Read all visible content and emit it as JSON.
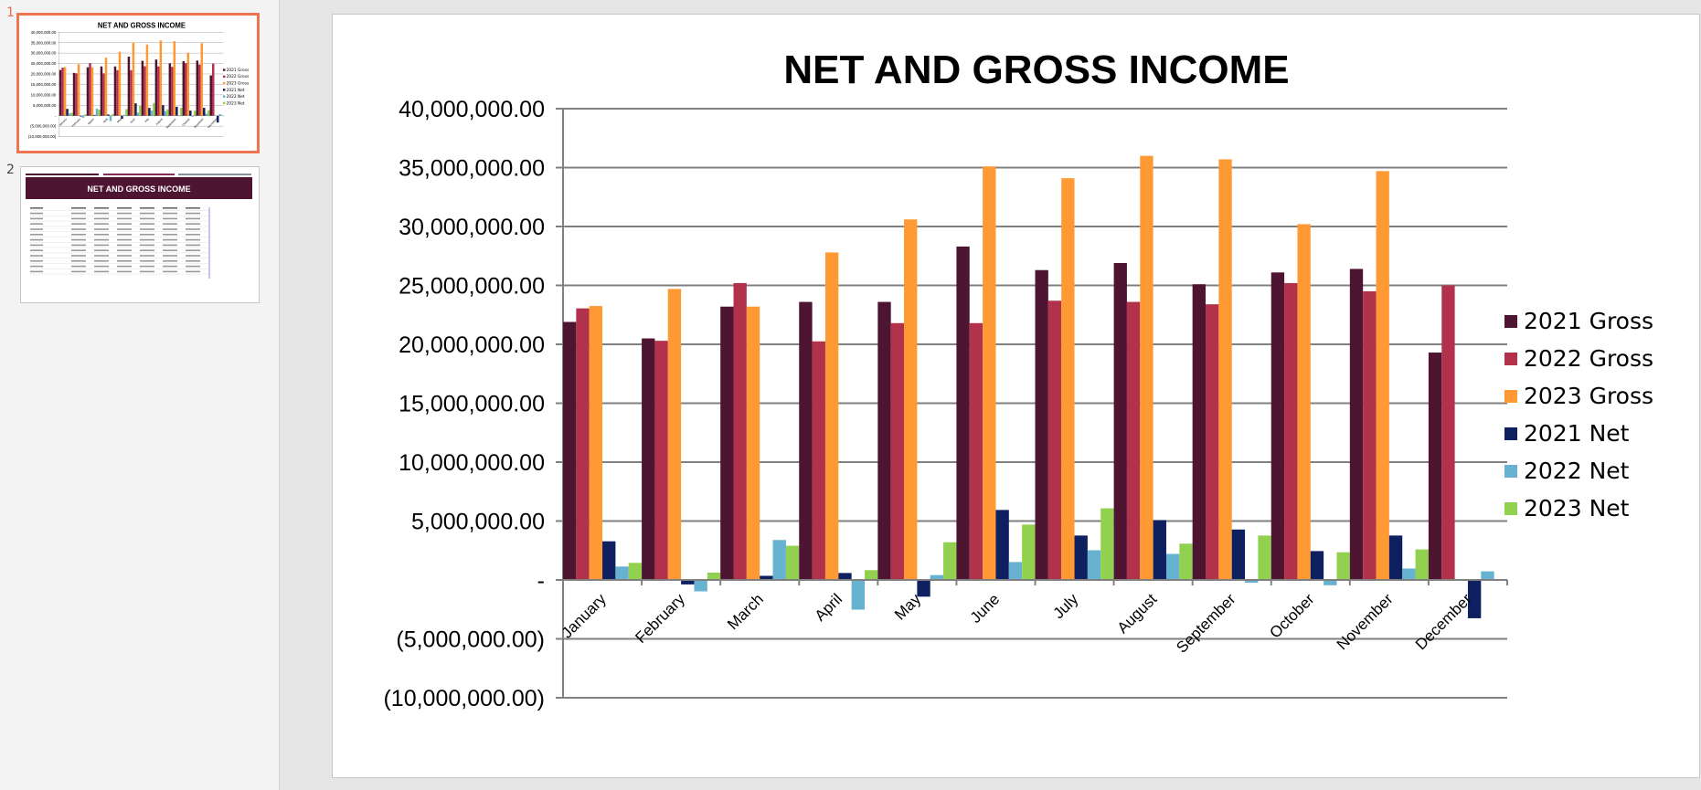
{
  "slides_panel": {
    "slides": [
      {
        "number": "1",
        "active": true
      },
      {
        "number": "2",
        "active": false,
        "title": "NET AND GROSS INCOME"
      }
    ]
  },
  "chart_data": {
    "type": "bar",
    "title": "NET AND GROSS INCOME",
    "xlabel": "",
    "ylabel": "",
    "ylim": [
      -10000000,
      40000000
    ],
    "yticks": [
      40000000,
      35000000,
      30000000,
      25000000,
      20000000,
      15000000,
      10000000,
      5000000,
      0,
      -5000000,
      -10000000
    ],
    "ytick_labels": [
      "40,000,000.00",
      "35,000,000.00",
      "30,000,000.00",
      "25,000,000.00",
      "20,000,000.00",
      "15,000,000.00",
      "10,000,000.00",
      "5,000,000.00",
      "-",
      "(5,000,000.00)",
      "(10,000,000.00)"
    ],
    "grid": true,
    "legend_position": "right",
    "categories": [
      "January",
      "February",
      "March",
      "April",
      "May",
      "June",
      "July",
      "August",
      "September",
      "October",
      "November",
      "December"
    ],
    "series": [
      {
        "name": "2021 Gross",
        "color": "#4e1533",
        "values": [
          21900000,
          20500000,
          23200000,
          23600000,
          23600000,
          28300000,
          26300000,
          26900000,
          25100000,
          26100000,
          26400000,
          19300000
        ]
      },
      {
        "name": "2022 Gross",
        "color": "#b3324b",
        "values": [
          23050000,
          20300000,
          25200000,
          20250000,
          21800000,
          21800000,
          23700000,
          23600000,
          23400000,
          25200000,
          24500000,
          25000000
        ]
      },
      {
        "name": "2023 Gross",
        "color": "#ff9933",
        "values": [
          23250000,
          24700000,
          23200000,
          27800000,
          30600000,
          35100000,
          34100000,
          36000000,
          35700000,
          30200000,
          34700000,
          null
        ]
      },
      {
        "name": "2021 Net",
        "color": "#0e2060",
        "values": [
          3280000,
          -380000,
          350000,
          590000,
          -1420000,
          5940000,
          3770000,
          5080000,
          4280000,
          2450000,
          3770000,
          -3250000
        ]
      },
      {
        "name": "2022 Net",
        "color": "#66b2d0",
        "values": [
          1140000,
          -970000,
          3390000,
          -2520000,
          410000,
          1520000,
          2520000,
          2210000,
          -240000,
          -450000,
          970000,
          730000
        ]
      },
      {
        "name": "2023 Net",
        "color": "#92d050",
        "values": [
          1450000,
          620000,
          2900000,
          830000,
          3200000,
          4700000,
          6080000,
          3080000,
          3770000,
          2350000,
          2590000,
          null
        ]
      }
    ]
  }
}
